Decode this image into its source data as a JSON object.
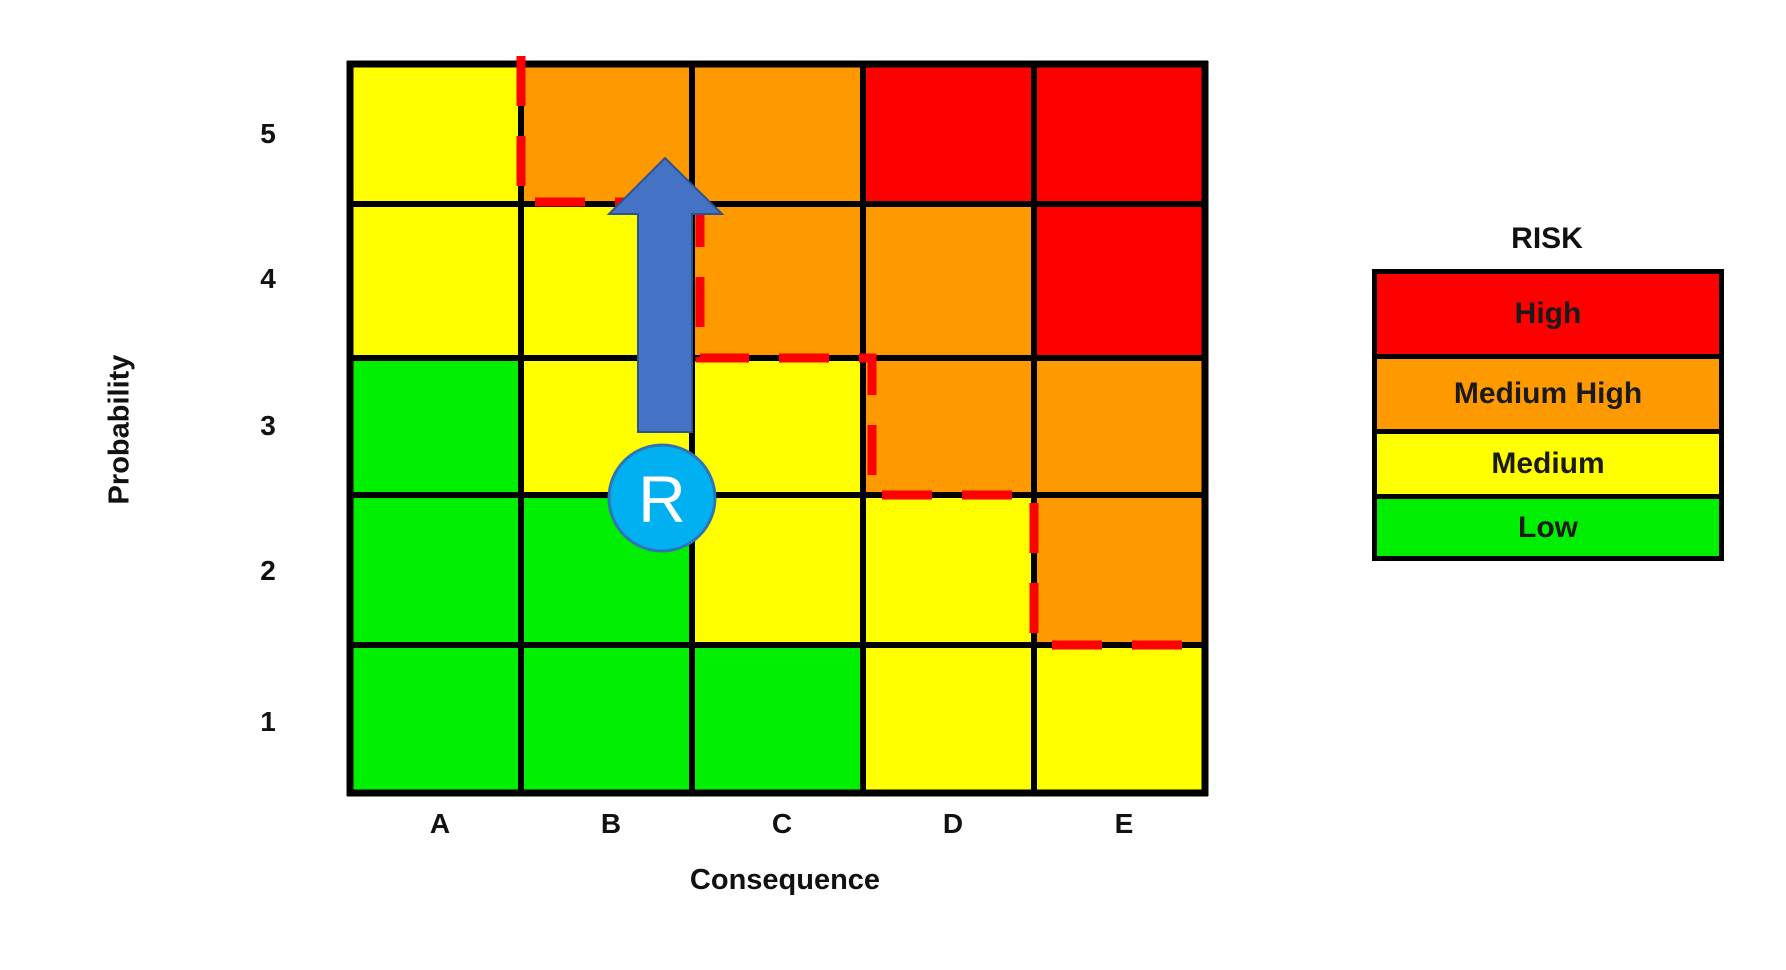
{
  "chart_data": {
    "type": "heatmap",
    "title": "",
    "xlabel": "Consequence",
    "ylabel": "Probability",
    "x_categories": [
      "A",
      "B",
      "C",
      "D",
      "E"
    ],
    "y_categories": [
      "5",
      "4",
      "3",
      "2",
      "1"
    ],
    "cells": [
      [
        "Medium",
        "Medium High",
        "Medium High",
        "High",
        "High"
      ],
      [
        "Medium",
        "Medium",
        "Medium High",
        "Medium High",
        "High"
      ],
      [
        "Low",
        "Medium",
        "Medium",
        "Medium High",
        "Medium High"
      ],
      [
        "Low",
        "Low",
        "Medium",
        "Medium",
        "Medium High"
      ],
      [
        "Low",
        "Low",
        "Low",
        "Medium",
        "Medium"
      ]
    ],
    "legend": {
      "title": "RISK",
      "position": "right",
      "entries": [
        {
          "label": "High",
          "color": "#FF0000"
        },
        {
          "label": "Medium High",
          "color": "#FF9900"
        },
        {
          "label": "Medium",
          "color": "#FFFF00"
        },
        {
          "label": "Low",
          "color": "#00EE00"
        }
      ]
    },
    "annotations": [
      {
        "type": "dashed-boundary",
        "color": "#FF0000",
        "description": "Red dashed line separating Medium zone from Medium High/High zone"
      },
      {
        "type": "marker",
        "label": "R",
        "position": {
          "consequence": "B-C border",
          "probability": "3-2 border"
        },
        "color": "#00B0F0"
      },
      {
        "type": "arrow",
        "direction": "up",
        "from": {
          "probability": 3
        },
        "to": {
          "probability": 5
        },
        "color": "#4472C4"
      }
    ]
  },
  "axes": {
    "xlabel": "Consequence",
    "ylabel": "Probability",
    "xticks": [
      "A",
      "B",
      "C",
      "D",
      "E"
    ],
    "yticks": [
      "5",
      "4",
      "3",
      "2",
      "1"
    ]
  },
  "legend": {
    "title": "RISK",
    "entries": [
      {
        "label": "High",
        "color": "#FF0000"
      },
      {
        "label": "Medium High",
        "color": "#FF9900"
      },
      {
        "label": "Medium",
        "color": "#FFFF00"
      },
      {
        "label": "Low",
        "color": "#00EE00"
      }
    ]
  },
  "marker": {
    "label": "R"
  },
  "colors": {
    "High": "#FF0000",
    "Medium High": "#FF9900",
    "Medium": "#FFFF00",
    "Low": "#00EE00",
    "arrow": "#4472C4",
    "arrow_border": "#2F528F",
    "marker_fill": "#00B0F0",
    "marker_border": "#2E75B6",
    "boundary": "#FF0000"
  }
}
